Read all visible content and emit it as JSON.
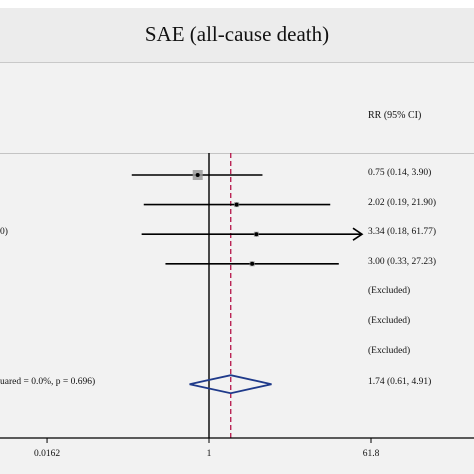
{
  "chart_data": {
    "type": "forest",
    "title": "SAE (all-cause death)",
    "column_header": "RR (95% CI)",
    "x_scale": "log",
    "x_ticks": [
      {
        "value": 0.0162,
        "label": "0.0162"
      },
      {
        "value": 1,
        "label": "1"
      },
      {
        "value": 61.8,
        "label": "61.8"
      }
    ],
    "xlim": [
      0.0162,
      61.8
    ],
    "null_line": 1,
    "pooled_line": 1.74,
    "studies": [
      {
        "label": "",
        "rr": 0.75,
        "lower": 0.14,
        "upper": 3.9,
        "ci_text": "0.75 (0.14, 3.90)",
        "arrow": false
      },
      {
        "label": "",
        "rr": 2.02,
        "lower": 0.19,
        "upper": 21.9,
        "ci_text": "2.02 (0.19, 21.90)",
        "arrow": false
      },
      {
        "label": "0)",
        "rr": 3.34,
        "lower": 0.18,
        "upper": 61.77,
        "ci_text": "3.34 (0.18, 61.77)",
        "arrow": true
      },
      {
        "label": "",
        "rr": 3.0,
        "lower": 0.33,
        "upper": 27.23,
        "ci_text": "3.00 (0.33, 27.23)",
        "arrow": false
      },
      {
        "label": "",
        "rr": null,
        "lower": null,
        "upper": null,
        "ci_text": "(Excluded)",
        "arrow": false
      },
      {
        "label": "",
        "rr": null,
        "lower": null,
        "upper": null,
        "ci_text": "(Excluded)",
        "arrow": false
      },
      {
        "label": "",
        "rr": null,
        "lower": null,
        "upper": null,
        "ci_text": "(Excluded)",
        "arrow": false
      }
    ],
    "overall": {
      "label": "uared = 0.0%, p = 0.696)",
      "rr": 1.74,
      "lower": 0.61,
      "upper": 4.91,
      "ci_text": "1.74 (0.61, 4.91)"
    },
    "colors": {
      "ci_line": "#000000",
      "pooled_line": "#b0003a",
      "diamond": "#1f3a8a",
      "marker_box": "#9a9a9a"
    }
  }
}
